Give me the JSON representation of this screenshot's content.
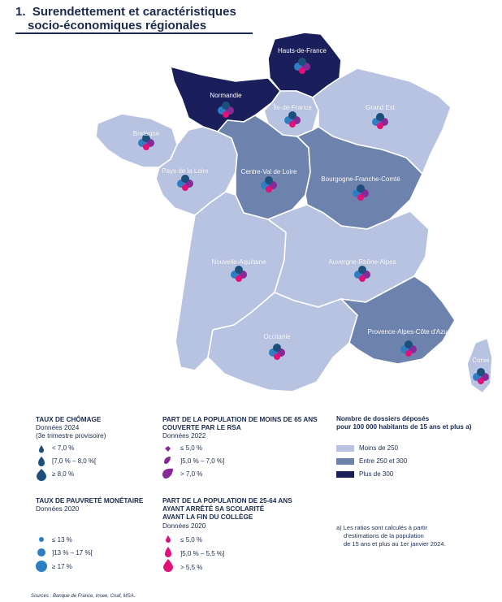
{
  "title": {
    "number": "1.",
    "line1": "Surendettement et caractéristiques",
    "line2": "socio-économiques régionales"
  },
  "colors": {
    "low": "#b8c3e2",
    "mid": "#6d83ae",
    "high": "#1a1f5c",
    "chomage": "#1d4f7d",
    "pauvrete": "#2e7ec3",
    "rsa": "#862a97",
    "scolarite": "#e0127a"
  },
  "regions": [
    {
      "id": "hauts-de-france",
      "name": "Hauts-de-France",
      "class": "Plus de 300"
    },
    {
      "id": "normandie",
      "name": "Normandie",
      "class": "Plus de 300"
    },
    {
      "id": "ile-de-france",
      "name": "Île-de-France",
      "class": "Moins de 250"
    },
    {
      "id": "grand-est",
      "name": "Grand Est",
      "class": "Moins de 250"
    },
    {
      "id": "bretagne",
      "name": "Bretagne",
      "class": "Moins de 250"
    },
    {
      "id": "pays-de-la-loire",
      "name": "Pays de la Loire",
      "class": "Moins de 250"
    },
    {
      "id": "centre-val-de-loire",
      "name": "Centre-Val de Loire",
      "class": "Entre 250 et 300"
    },
    {
      "id": "bourgogne-franche-comte",
      "name": "Bourgogne-Franche-Comté",
      "class": "Entre 250 et 300"
    },
    {
      "id": "nouvelle-aquitaine",
      "name": "Nouvelle-Aquitaine",
      "class": "Moins de 250"
    },
    {
      "id": "auvergne-rhone-alpes",
      "name": "Auvergne-Rhône-Alpes",
      "class": "Moins de 250"
    },
    {
      "id": "occitanie",
      "name": "Occitanie",
      "class": "Moins de 250"
    },
    {
      "id": "paca",
      "name": "Provence-Alpes-Côte d'Azur",
      "class": "Entre 250 et 300"
    },
    {
      "id": "corse",
      "name": "Corse",
      "class": "Moins de 250"
    }
  ],
  "legend_chomage": {
    "title": "TAUX DE CHÔMAGE",
    "sub1": "Données 2024",
    "sub2": "(3e trimestre provisoire)",
    "items": [
      "< 7,0 %",
      "[7,0 % – 8,0 %[",
      "≥ 8,0 %"
    ]
  },
  "legend_pauvrete": {
    "title": "TAUX DE PAUVRETÉ MONÉTAIRE",
    "sub1": "Données 2020",
    "items": [
      "≤ 13 %",
      "]13 % – 17 %[",
      "≥ 17 %"
    ]
  },
  "legend_rsa": {
    "title1": "PART DE LA POPULATION DE MOINS DE 65 ANS",
    "title2": "COUVERTE PAR LE RSA",
    "sub1": "Données 2022",
    "items": [
      "≤ 5,0 %",
      "]5,0 % – 7,0 %]",
      "> 7,0 %"
    ]
  },
  "legend_scolarite": {
    "title1": "PART DE LA POPULATION DE 25-64 ANS",
    "title2": "AYANT ARRÊTÉ SA SCOLARITÉ",
    "title3": "AVANT LA FIN DU COLLÈGE",
    "sub1": "Données 2020",
    "items": [
      "≤ 5,0 %",
      "]5,0 % – 5,5 %]",
      "> 5,5 %"
    ]
  },
  "legend_dossiers": {
    "title1": "Nombre de dossiers déposés",
    "title2": "pour 100 000 habitants de 15 ans et plus a)",
    "items": [
      "Moins de 250",
      "Entre 250 et 300",
      "Plus de 300"
    ]
  },
  "note": {
    "line1": "a) Les ratios sont calculés à partir",
    "line2": "d’estimations de la population",
    "line3": "de 15 ans et plus au 1er janvier 2024."
  },
  "sources": "Sources : Banque de France, Insee, Cnaf, MSA."
}
